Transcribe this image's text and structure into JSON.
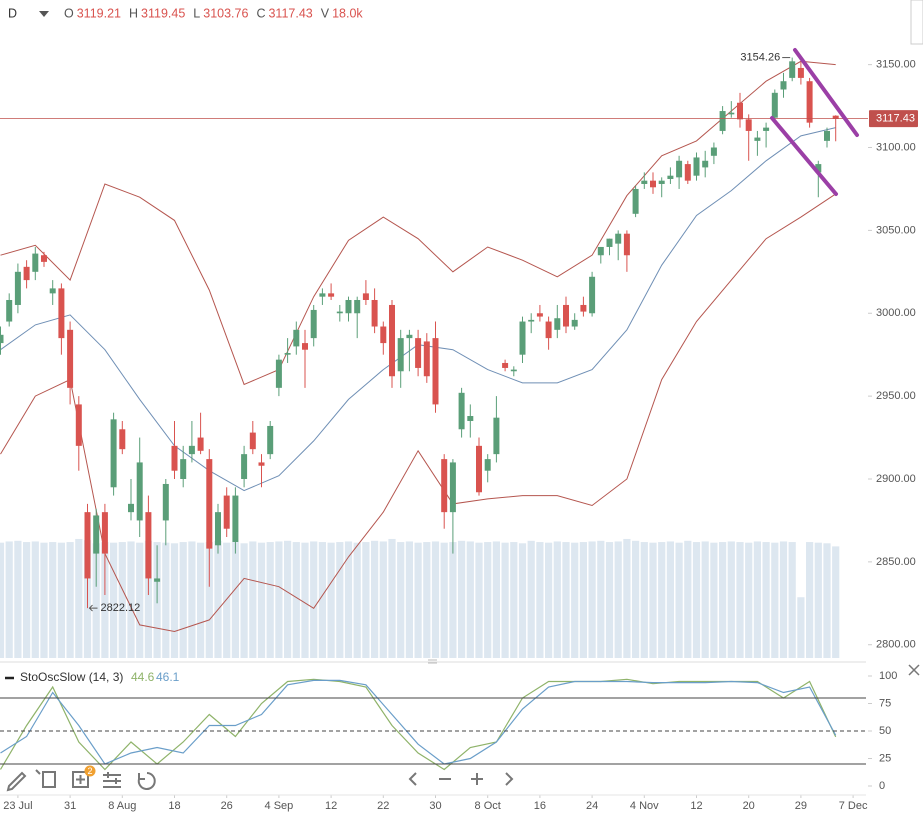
{
  "chart_data": {
    "type": "candlestick",
    "header": {
      "interval": "D",
      "labels": [
        "O",
        "H",
        "L",
        "C",
        "V"
      ]
    },
    "xlim": [
      0,
      106
    ],
    "xticks": [
      {
        "value": 2,
        "label": "23 Jul"
      },
      {
        "value": 8,
        "label": "31"
      },
      {
        "value": 14,
        "label": "8 Aug"
      },
      {
        "value": 20,
        "label": "18"
      },
      {
        "value": 26,
        "label": "26"
      },
      {
        "value": 32,
        "label": "4 Sep"
      },
      {
        "value": 38,
        "label": "12"
      },
      {
        "value": 44,
        "label": "22"
      },
      {
        "value": 50,
        "label": "30"
      },
      {
        "value": 56,
        "label": "8 Oct"
      },
      {
        "value": 62,
        "label": "16"
      },
      {
        "value": 68,
        "label": "24"
      },
      {
        "value": 74,
        "label": "4 Nov"
      },
      {
        "value": 80,
        "label": "12"
      },
      {
        "value": 86,
        "label": "20"
      },
      {
        "value": 92,
        "label": "29"
      },
      {
        "value": 98,
        "label": "7 Dec"
      }
    ],
    "ylim": [
      2792,
      3189
    ],
    "yticks": [
      {
        "value": 2800,
        "label": "2800.00"
      },
      {
        "value": 2850,
        "label": "2850.00"
      },
      {
        "value": 2900,
        "label": "2900.00"
      },
      {
        "value": 2950,
        "label": "2950.00"
      },
      {
        "value": 3000,
        "label": "3000.00"
      },
      {
        "value": 3050,
        "label": "3050.00"
      },
      {
        "value": 3100,
        "label": "3100.00"
      },
      {
        "value": 3150,
        "label": "3150.00"
      }
    ],
    "up_color": "#5a9e78",
    "down_color": "#d9534f",
    "candles": [
      [
        2982,
        2992,
        2975,
        2987
      ],
      [
        2995,
        3012,
        2992,
        3008
      ],
      [
        3005,
        3030,
        3000,
        3025
      ],
      [
        3028,
        3032,
        3015,
        3020
      ],
      [
        3025,
        3040,
        3020,
        3036
      ],
      [
        3035,
        3037,
        3028,
        3031
      ],
      [
        3012,
        3020,
        3005,
        3015
      ],
      [
        3015,
        3018,
        2975,
        2985
      ],
      [
        2990,
        2995,
        2945,
        2955
      ],
      [
        2945,
        2950,
        2905,
        2920
      ],
      [
        2880,
        2885,
        2822.12,
        2840
      ],
      [
        2855,
        2882,
        2835,
        2878
      ],
      [
        2880,
        2885,
        2830,
        2855
      ],
      [
        2895,
        2940,
        2890,
        2936
      ],
      [
        2930,
        2935,
        2915,
        2918
      ],
      [
        2880,
        2900,
        2875,
        2885
      ],
      [
        2875,
        2925,
        2865,
        2910
      ],
      [
        2880,
        2890,
        2830,
        2840
      ],
      [
        2838,
        2860,
        2825,
        2840
      ],
      [
        2875,
        2900,
        2860,
        2897
      ],
      [
        2920,
        2935,
        2900,
        2905
      ],
      [
        2900,
        2920,
        2895,
        2912
      ],
      [
        2915,
        2935,
        2910,
        2920
      ],
      [
        2925,
        2940,
        2915,
        2917
      ],
      [
        2912,
        2918,
        2835,
        2858
      ],
      [
        2860,
        2885,
        2855,
        2880
      ],
      [
        2890,
        2895,
        2865,
        2870
      ],
      [
        2862,
        2895,
        2855,
        2890
      ],
      [
        2900,
        2920,
        2895,
        2915
      ],
      [
        2928,
        2935,
        2915,
        2918
      ],
      [
        2910,
        2915,
        2895,
        2908
      ],
      [
        2915,
        2935,
        2912,
        2932
      ],
      [
        2955,
        2975,
        2950,
        2972
      ],
      [
        2975,
        2985,
        2970,
        2976
      ],
      [
        2980,
        2995,
        2975,
        2990
      ],
      [
        2982,
        2990,
        2955,
        2978
      ],
      [
        2985,
        3005,
        2980,
        3002
      ],
      [
        3010,
        3015,
        3005,
        3012
      ],
      [
        3012,
        3018,
        3008,
        3010
      ],
      [
        3000,
        3005,
        2995,
        3001
      ],
      [
        3000,
        3010,
        2995,
        3008
      ],
      [
        3000,
        3010,
        2985,
        3008
      ],
      [
        3012,
        3020,
        3005,
        3008
      ],
      [
        3008,
        3015,
        2988,
        2992
      ],
      [
        2992,
        2995,
        2975,
        2982
      ],
      [
        3005,
        3008,
        2955,
        2962
      ],
      [
        2965,
        2990,
        2955,
        2985
      ],
      [
        2985,
        2990,
        2965,
        2987
      ],
      [
        2985,
        2990,
        2962,
        2967
      ],
      [
        2983,
        2988,
        2958,
        2962
      ],
      [
        2985,
        2995,
        2940,
        2945
      ],
      [
        2912,
        2915,
        2870,
        2880
      ],
      [
        2880,
        2912,
        2855,
        2910
      ],
      [
        2930,
        2955,
        2925,
        2952
      ],
      [
        2935,
        2945,
        2925,
        2938
      ],
      [
        2920,
        2925,
        2890,
        2892
      ],
      [
        2905,
        2915,
        2898,
        2912
      ],
      [
        2915,
        2950,
        2910,
        2937
      ],
      [
        2970,
        2972,
        2965,
        2967
      ],
      [
        2965,
        2968,
        2962,
        2966
      ],
      [
        2975,
        2998,
        2970,
        2995
      ],
      [
        2995,
        3000,
        2988,
        2996
      ],
      [
        3000,
        3005,
        2995,
        2998
      ],
      [
        2995,
        2998,
        2978,
        2985
      ],
      [
        2990,
        3005,
        2985,
        2997
      ],
      [
        3005,
        3010,
        2988,
        2992
      ],
      [
        2992,
        3000,
        2990,
        2996
      ],
      [
        3005,
        3010,
        2998,
        3001
      ],
      [
        3000,
        3025,
        2998,
        3022
      ],
      [
        3035,
        3040,
        3030,
        3040
      ],
      [
        3040,
        3045,
        3035,
        3045
      ],
      [
        3042,
        3050,
        3032,
        3048
      ],
      [
        3048,
        3050,
        3025,
        3035
      ],
      [
        3060,
        3077,
        3058,
        3075
      ],
      [
        3078,
        3085,
        3075,
        3080
      ],
      [
        3080,
        3085,
        3072,
        3076
      ],
      [
        3078,
        3082,
        3070,
        3080
      ],
      [
        3081,
        3088,
        3078,
        3083
      ],
      [
        3082,
        3095,
        3075,
        3092
      ],
      [
        3090,
        3092,
        3078,
        3080
      ],
      [
        3083,
        3097,
        3080,
        3094
      ],
      [
        3088,
        3098,
        3082,
        3092
      ],
      [
        3095,
        3103,
        3090,
        3100
      ],
      [
        3110,
        3125,
        3108,
        3122
      ],
      [
        3120,
        3128,
        3118,
        3121
      ],
      [
        3127,
        3133,
        3112,
        3117
      ],
      [
        3117,
        3120,
        3092,
        3110
      ],
      [
        3104,
        3110,
        3095,
        3106
      ],
      [
        3110,
        3115,
        3100,
        3112
      ],
      [
        3118,
        3135,
        3115,
        3133
      ],
      [
        3135,
        3145,
        3130,
        3140
      ],
      [
        3142,
        3154.26,
        3140,
        3152
      ],
      [
        3148,
        3152,
        3138,
        3142
      ],
      [
        3140,
        3142,
        3112,
        3115
      ],
      [
        3085,
        3092,
        3070,
        3090
      ],
      [
        3104,
        3112,
        3100,
        3110
      ],
      [
        3119.21,
        3119.45,
        3103.76,
        3117.43
      ]
    ],
    "bands": {
      "x": [
        0,
        4,
        8,
        12,
        16,
        20,
        24,
        28,
        32,
        36,
        40,
        44,
        48,
        52,
        56,
        60,
        64,
        68,
        72,
        76,
        80,
        84,
        88,
        92,
        96
      ],
      "series": [
        {
          "color": "#b5564f",
          "values": [
            3035,
            3041,
            3020,
            3078,
            3070,
            3056,
            3014,
            2957,
            2966,
            3010,
            3044,
            3058,
            3045,
            3025,
            3040,
            3032,
            3022,
            3035,
            3071,
            3095,
            3104,
            3122,
            3140,
            3152,
            3150
          ]
        },
        {
          "color": "#6f8fb5",
          "values": [
            2978,
            2993,
            2999,
            2978,
            2948,
            2920,
            2905,
            2893,
            2902,
            2923,
            2948,
            2966,
            2981,
            2978,
            2966,
            2958,
            2958,
            2966,
            2990,
            3029,
            3059,
            3074,
            3092,
            3107,
            3112
          ]
        },
        {
          "color": "#b5564f",
          "values": [
            2915,
            2950,
            2960,
            2855,
            2812,
            2808,
            2815,
            2840,
            2835,
            2822,
            2853,
            2880,
            2917,
            2885,
            2888,
            2890,
            2890,
            2884,
            2900,
            2960,
            2995,
            3020,
            3045,
            3058,
            3072
          ]
        }
      ]
    },
    "volume": {
      "color": "#dde7f0",
      "value_label": "18.0k",
      "values": [
        18600,
        18800,
        18900,
        18700,
        18800,
        18600,
        18700,
        18600,
        18700,
        19200,
        19000,
        18500,
        18700,
        18600,
        18700,
        18800,
        18600,
        18900,
        18700,
        18600,
        18500,
        18700,
        18800,
        18600,
        18700,
        18900,
        18600,
        18700,
        18500,
        18800,
        18600,
        18700,
        18800,
        18900,
        18700,
        18600,
        18800,
        18700,
        18600,
        18700,
        18800,
        18600,
        18700,
        18900,
        18800,
        19200,
        18700,
        18800,
        18600,
        18700,
        18800,
        18600,
        18700,
        18900,
        18800,
        18600,
        18700,
        18800,
        18600,
        18700,
        18500,
        18900,
        18700,
        18600,
        18800,
        18700,
        18600,
        18700,
        18800,
        18900,
        18700,
        18800,
        19200,
        18900,
        18700,
        18600,
        18700,
        18800,
        18600,
        18900,
        18700,
        18800,
        18600,
        18700,
        18800,
        18700,
        18600,
        18800,
        18700,
        18600,
        18800,
        18700,
        9800,
        18700,
        18600,
        18500,
        18000
      ]
    },
    "annotations": {
      "high_candle": 91,
      "low_candle": 10,
      "last_color": "#c0504d"
    },
    "stochastic": {
      "title": "StoOscSlow (14, 3)",
      "ylim": [
        0,
        100
      ],
      "yticks": [
        0,
        25,
        50,
        75,
        100
      ],
      "levels": [
        20,
        50,
        80
      ],
      "x": [
        0,
        3,
        6,
        9,
        12,
        15,
        18,
        21,
        24,
        27,
        30,
        33,
        36,
        39,
        42,
        45,
        48,
        51,
        54,
        57,
        60,
        63,
        66,
        69,
        72,
        75,
        78,
        81,
        84,
        87,
        90,
        93,
        96
      ],
      "series": [
        {
          "color": "#8fb36a",
          "values": [
            15,
            55,
            90,
            40,
            15,
            40,
            20,
            40,
            65,
            45,
            75,
            95,
            97,
            95,
            90,
            55,
            30,
            15,
            35,
            40,
            80,
            95,
            95,
            95,
            97,
            93,
            95,
            95,
            95,
            95,
            80,
            95,
            44.6
          ]
        },
        {
          "color": "#6a9ec9",
          "values": [
            30,
            45,
            85,
            55,
            20,
            30,
            35,
            30,
            55,
            55,
            65,
            92,
            96,
            96,
            92,
            65,
            38,
            20,
            25,
            40,
            70,
            90,
            95,
            95,
            95,
            94,
            94,
            94,
            95,
            94,
            85,
            90,
            46.1
          ]
        }
      ]
    },
    "toolbar": {
      "badge": "2"
    }
  }
}
